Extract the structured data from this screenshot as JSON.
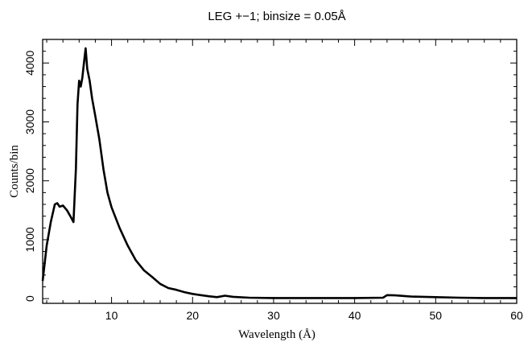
{
  "chart_data": {
    "type": "line",
    "title": "LEG +−1; binsize = 0.05Å",
    "xlabel": "Wavelength (Å)",
    "ylabel": "Counts/bin",
    "xlim": [
      1.5,
      60
    ],
    "ylim": [
      -80,
      4400
    ],
    "xticks": [
      10,
      20,
      30,
      40,
      50,
      60
    ],
    "yticks": [
      0,
      1000,
      2000,
      3000,
      4000
    ],
    "grid": false,
    "legend": "none",
    "line_color": "#000000",
    "series": [
      {
        "x": [
          1.5,
          2.0,
          2.5,
          3.0,
          3.3,
          3.6,
          4.0,
          4.5,
          5.0,
          5.3,
          5.6,
          5.8,
          6.0,
          6.2,
          6.4,
          6.6,
          6.8,
          7.0,
          7.3,
          7.6,
          8.0,
          8.5,
          9.0,
          9.5,
          10,
          11,
          12,
          13,
          14,
          15,
          16,
          17,
          18,
          19,
          20,
          21,
          22,
          23,
          24,
          25,
          27,
          30,
          35,
          40,
          43.5,
          44,
          45,
          47,
          50,
          53,
          56,
          60
        ],
        "y": [
          300,
          900,
          1300,
          1600,
          1620,
          1560,
          1580,
          1500,
          1380,
          1300,
          2200,
          3300,
          3700,
          3600,
          3750,
          4000,
          4250,
          3900,
          3700,
          3400,
          3100,
          2700,
          2200,
          1800,
          1550,
          1200,
          900,
          650,
          480,
          370,
          250,
          180,
          150,
          110,
          80,
          60,
          40,
          25,
          50,
          30,
          15,
          10,
          10,
          10,
          15,
          60,
          55,
          35,
          25,
          15,
          10,
          10
        ]
      }
    ]
  }
}
